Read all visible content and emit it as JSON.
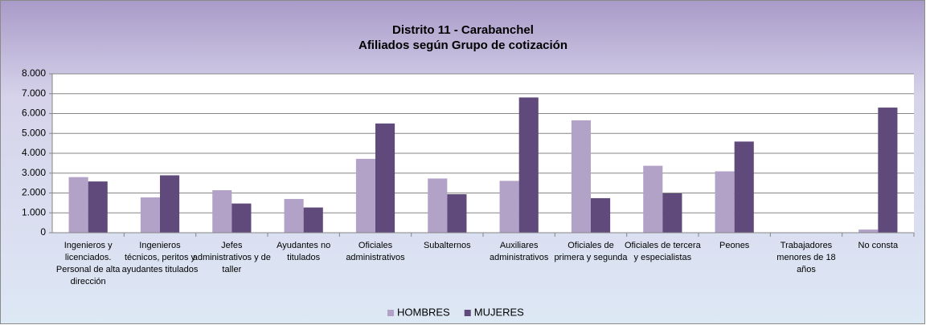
{
  "chart_data": {
    "type": "bar",
    "title": "Distrito 11 - Carabanchel",
    "subtitle": "Afiliados según Grupo de cotización",
    "categories": [
      "Ingenieros y licenciados. Personal de alta dirección",
      "Ingenieros técnicos, peritos y ayudantes titulados",
      "Jefes administrativos y de taller",
      "Ayudantes no titulados",
      "Oficiales administrativos",
      "Subalternos",
      "Auxiliares administrativos",
      "Oficiales de primera y segunda",
      "Oficiales de tercera y especialistas",
      "Peones",
      "Trabajadores menores de 18 años",
      "No consta"
    ],
    "series": [
      {
        "name": "HOMBRES",
        "color": "#b3a2c7",
        "values": [
          2800,
          1780,
          2140,
          1700,
          3720,
          2730,
          2610,
          5660,
          3370,
          3090,
          10,
          160
        ]
      },
      {
        "name": "MUJERES",
        "color": "#604a7b",
        "values": [
          2580,
          2890,
          1470,
          1270,
          5500,
          1940,
          6810,
          1740,
          1980,
          4590,
          20,
          6300
        ]
      }
    ],
    "ylim": [
      0,
      8000
    ],
    "yticks": [
      0,
      {
        "value": 1000,
        "label": "1.000"
      },
      {
        "value": 2000,
        "label": "2.000"
      },
      {
        "value": 3000,
        "label": "3.000"
      },
      {
        "value": 4000,
        "label": "4.000"
      },
      {
        "value": 5000,
        "label": "5.000"
      },
      {
        "value": 6000,
        "label": "6.000"
      },
      {
        "value": 7000,
        "label": "7.000"
      },
      {
        "value": 8000,
        "label": "8.000"
      }
    ],
    "grid": true,
    "legend": "bottom"
  }
}
